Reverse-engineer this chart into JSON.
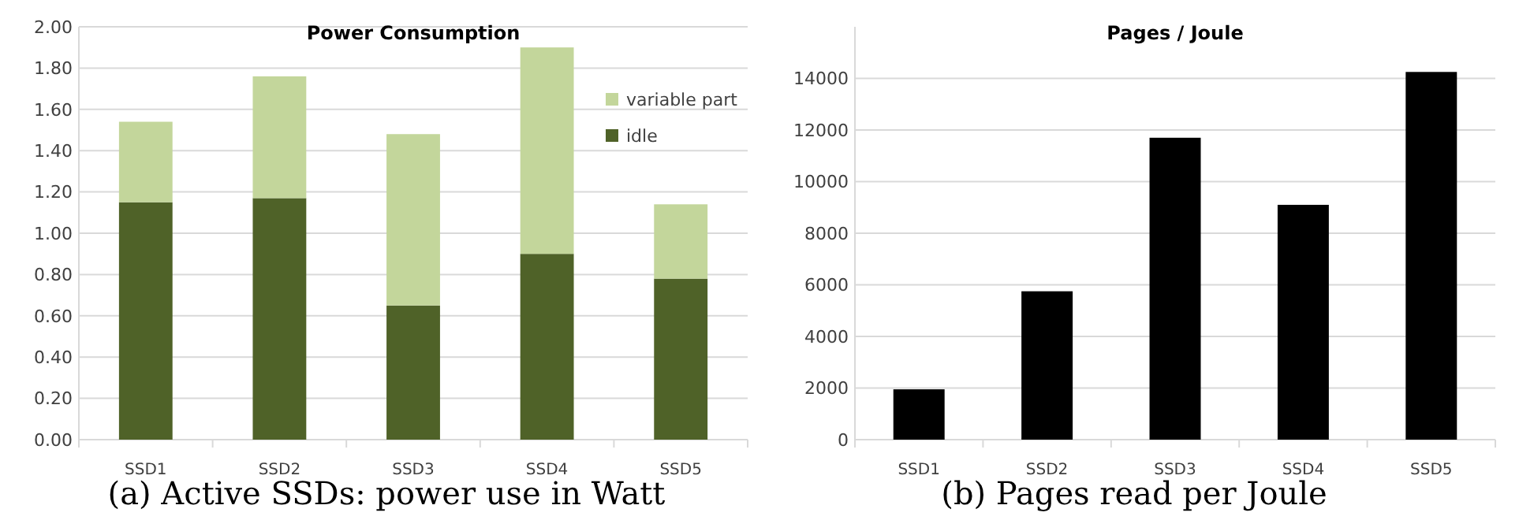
{
  "chart_data": [
    {
      "type": "bar",
      "title": "Power Consumption",
      "categories": [
        "SSD1",
        "SSD2",
        "SSD3",
        "SSD4",
        "SSD5"
      ],
      "stacked": true,
      "series": [
        {
          "name": "idle",
          "color": "#4f6228",
          "values": [
            1.15,
            1.17,
            0.65,
            0.9,
            0.78
          ]
        },
        {
          "name": "variable part",
          "color": "#c3d69b",
          "values": [
            0.39,
            0.59,
            0.83,
            1.0,
            0.36
          ]
        }
      ],
      "ylim": [
        0,
        2
      ],
      "yticks": [
        {
          "value": 0,
          "label": "0.00"
        },
        {
          "value": 0.2,
          "label": "0.20"
        },
        {
          "value": 0.4,
          "label": "0.40"
        },
        {
          "value": 0.6,
          "label": "0.60"
        },
        {
          "value": 0.8,
          "label": "0.80"
        },
        {
          "value": 1,
          "label": "1.00"
        },
        {
          "value": 1.2,
          "label": "1.20"
        },
        {
          "value": 1.4,
          "label": "1.40"
        },
        {
          "value": 1.6,
          "label": "1.60"
        },
        {
          "value": 1.8,
          "label": "1.80"
        },
        {
          "value": 2,
          "label": "2.00"
        }
      ],
      "grid": "y",
      "legend": "top right",
      "annotations": [
        "(a) Active SSDs: power use in Watt"
      ]
    },
    {
      "type": "bar",
      "title": "Pages  / Joule",
      "categories": [
        "SSD1",
        "SSD2",
        "SSD3",
        "SSD4",
        "SSD5"
      ],
      "series": [
        {
          "color": "#000000",
          "values": [
            1950,
            5750,
            11700,
            9100,
            14250
          ]
        }
      ],
      "ylim": [
        0,
        16000
      ],
      "yticks": [
        0,
        2000,
        4000,
        6000,
        8000,
        10000,
        12000,
        14000
      ],
      "grid": "y",
      "annotations": [
        "(b) Pages read per Joule"
      ]
    }
  ]
}
